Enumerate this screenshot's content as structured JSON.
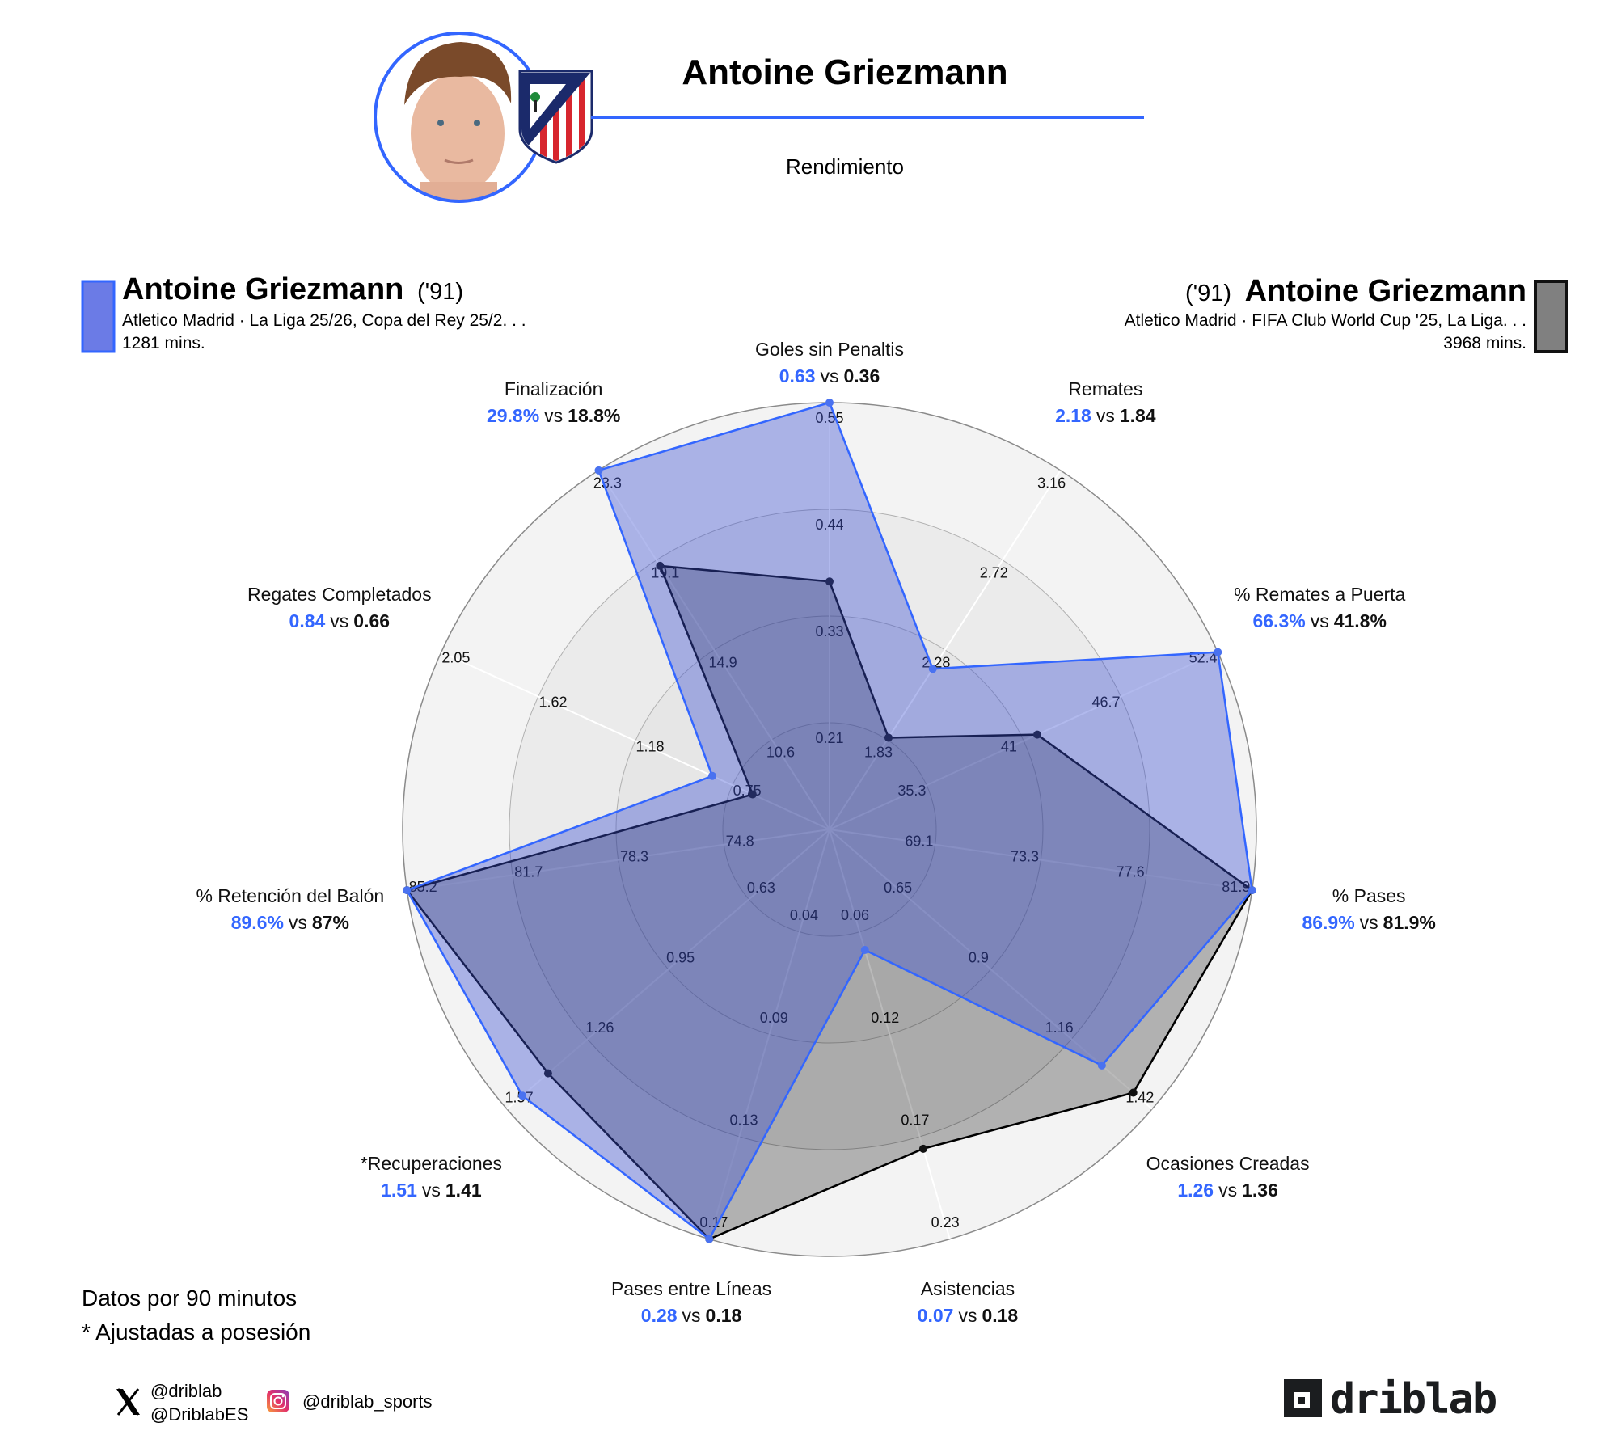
{
  "header": {
    "title": "Antoine Griezmann",
    "subtitle": "Rendimiento",
    "accent_color": "#3366ff",
    "photo": "player-photo",
    "crest": "atletico-madrid-crest"
  },
  "legend": {
    "left": {
      "name": "Antoine Griezmann",
      "year": "('91)",
      "competitions": "Atletico Madrid · La Liga 25/26, Copa del Rey 25/2. . .",
      "minutes": "1281 mins.",
      "color": "#6b7be6"
    },
    "right": {
      "name": "Antoine Griezmann",
      "year": "('91)",
      "competitions": "Atletico Madrid · FIFA Club World Cup '25, La Liga. . .",
      "minutes": "3968 mins.",
      "color": "#808080"
    }
  },
  "chart_data": {
    "type": "radar",
    "series_colors": {
      "player": "#3366ff",
      "comparison": "#000000"
    },
    "axes": [
      {
        "label": "Goles sin Penaltis",
        "player": "0.63",
        "comparison": "0.36",
        "ticks": [
          "0.21",
          "0.33",
          "0.44",
          "0.55"
        ]
      },
      {
        "label": "Remates",
        "player": "2.18",
        "comparison": "1.84",
        "ticks": [
          "1.83",
          "2.28",
          "2.72",
          "3.16"
        ]
      },
      {
        "label": "% Remates a Puerta",
        "player": "66.3%",
        "comparison": "41.8%",
        "ticks": [
          "35.3",
          "41",
          "46.7",
          "52.4"
        ]
      },
      {
        "label": "% Pases",
        "player": "86.9%",
        "comparison": "81.9%",
        "ticks": [
          "69.1",
          "73.3",
          "77.6",
          "81.9"
        ]
      },
      {
        "label": "Ocasiones Creadas",
        "player": "1.26",
        "comparison": "1.36",
        "ticks": [
          "0.65",
          "0.9",
          "1.16",
          "1.42"
        ]
      },
      {
        "label": "Asistencias",
        "player": "0.07",
        "comparison": "0.18",
        "ticks": [
          "0.06",
          "0.12",
          "0.17",
          "0.23"
        ]
      },
      {
        "label": "Pases entre Líneas",
        "player": "0.28",
        "comparison": "0.18",
        "ticks": [
          "0.04",
          "0.09",
          "0.13",
          "0.17"
        ]
      },
      {
        "label": "*Recuperaciones",
        "player": "1.51",
        "comparison": "1.41",
        "ticks": [
          "0.63",
          "0.95",
          "1.26",
          "1.57"
        ]
      },
      {
        "label": "% Retención del Balón",
        "player": "89.6%",
        "comparison": "87%",
        "ticks": [
          "74.8",
          "78.3",
          "81.7",
          "85.2"
        ]
      },
      {
        "label": "Regates Completados",
        "player": "0.84",
        "comparison": "0.66",
        "ticks": [
          "0.75",
          "1.18",
          "1.62",
          "2.05"
        ]
      },
      {
        "label": "Finalización",
        "player": "29.8%",
        "comparison": "18.8%",
        "ticks": [
          "10.6",
          "14.9",
          "19.1",
          "23.3"
        ]
      }
    ],
    "vs_label": "vs"
  },
  "notes": {
    "per90": "Datos por 90 minutos",
    "adjusted": "* Ajustadas a posesión"
  },
  "footer": {
    "x_handle_1": "@driblab",
    "x_handle_2": "@DriblabES",
    "instagram_handle": "@driblab_sports",
    "brand": "driblab"
  }
}
